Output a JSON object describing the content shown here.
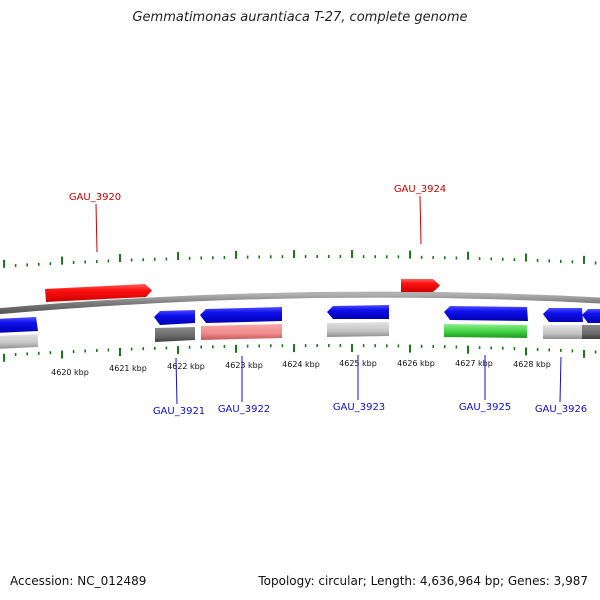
{
  "title": "Gemmatimonas aurantiaca T-27, complete genome",
  "footer": {
    "accession": "Accession: NC_012489",
    "summary": "Topology: circular; Length: 4,636,964 bp; Genes: 3,987"
  },
  "colors": {
    "forward": "#ff1010",
    "reverse": "#1010ee",
    "backbone": "#8a8a8a",
    "ticks": "#1a7a1a",
    "label_forward": "#cc0000",
    "label_reverse": "#1010cc"
  },
  "kbp_labels": [
    "4620 kbp",
    "4621 kbp",
    "4622 kbp",
    "4623 kbp",
    "4624 kbp",
    "4625 kbp",
    "4626 kbp",
    "4627 kbp",
    "4628 kbp"
  ],
  "gene_labels": {
    "forward": [
      "GAU_3920",
      "GAU_3924"
    ],
    "reverse": [
      "GAU_3921",
      "GAU_3922",
      "GAU_3923",
      "GAU_3925",
      "GAU_3926"
    ]
  }
}
